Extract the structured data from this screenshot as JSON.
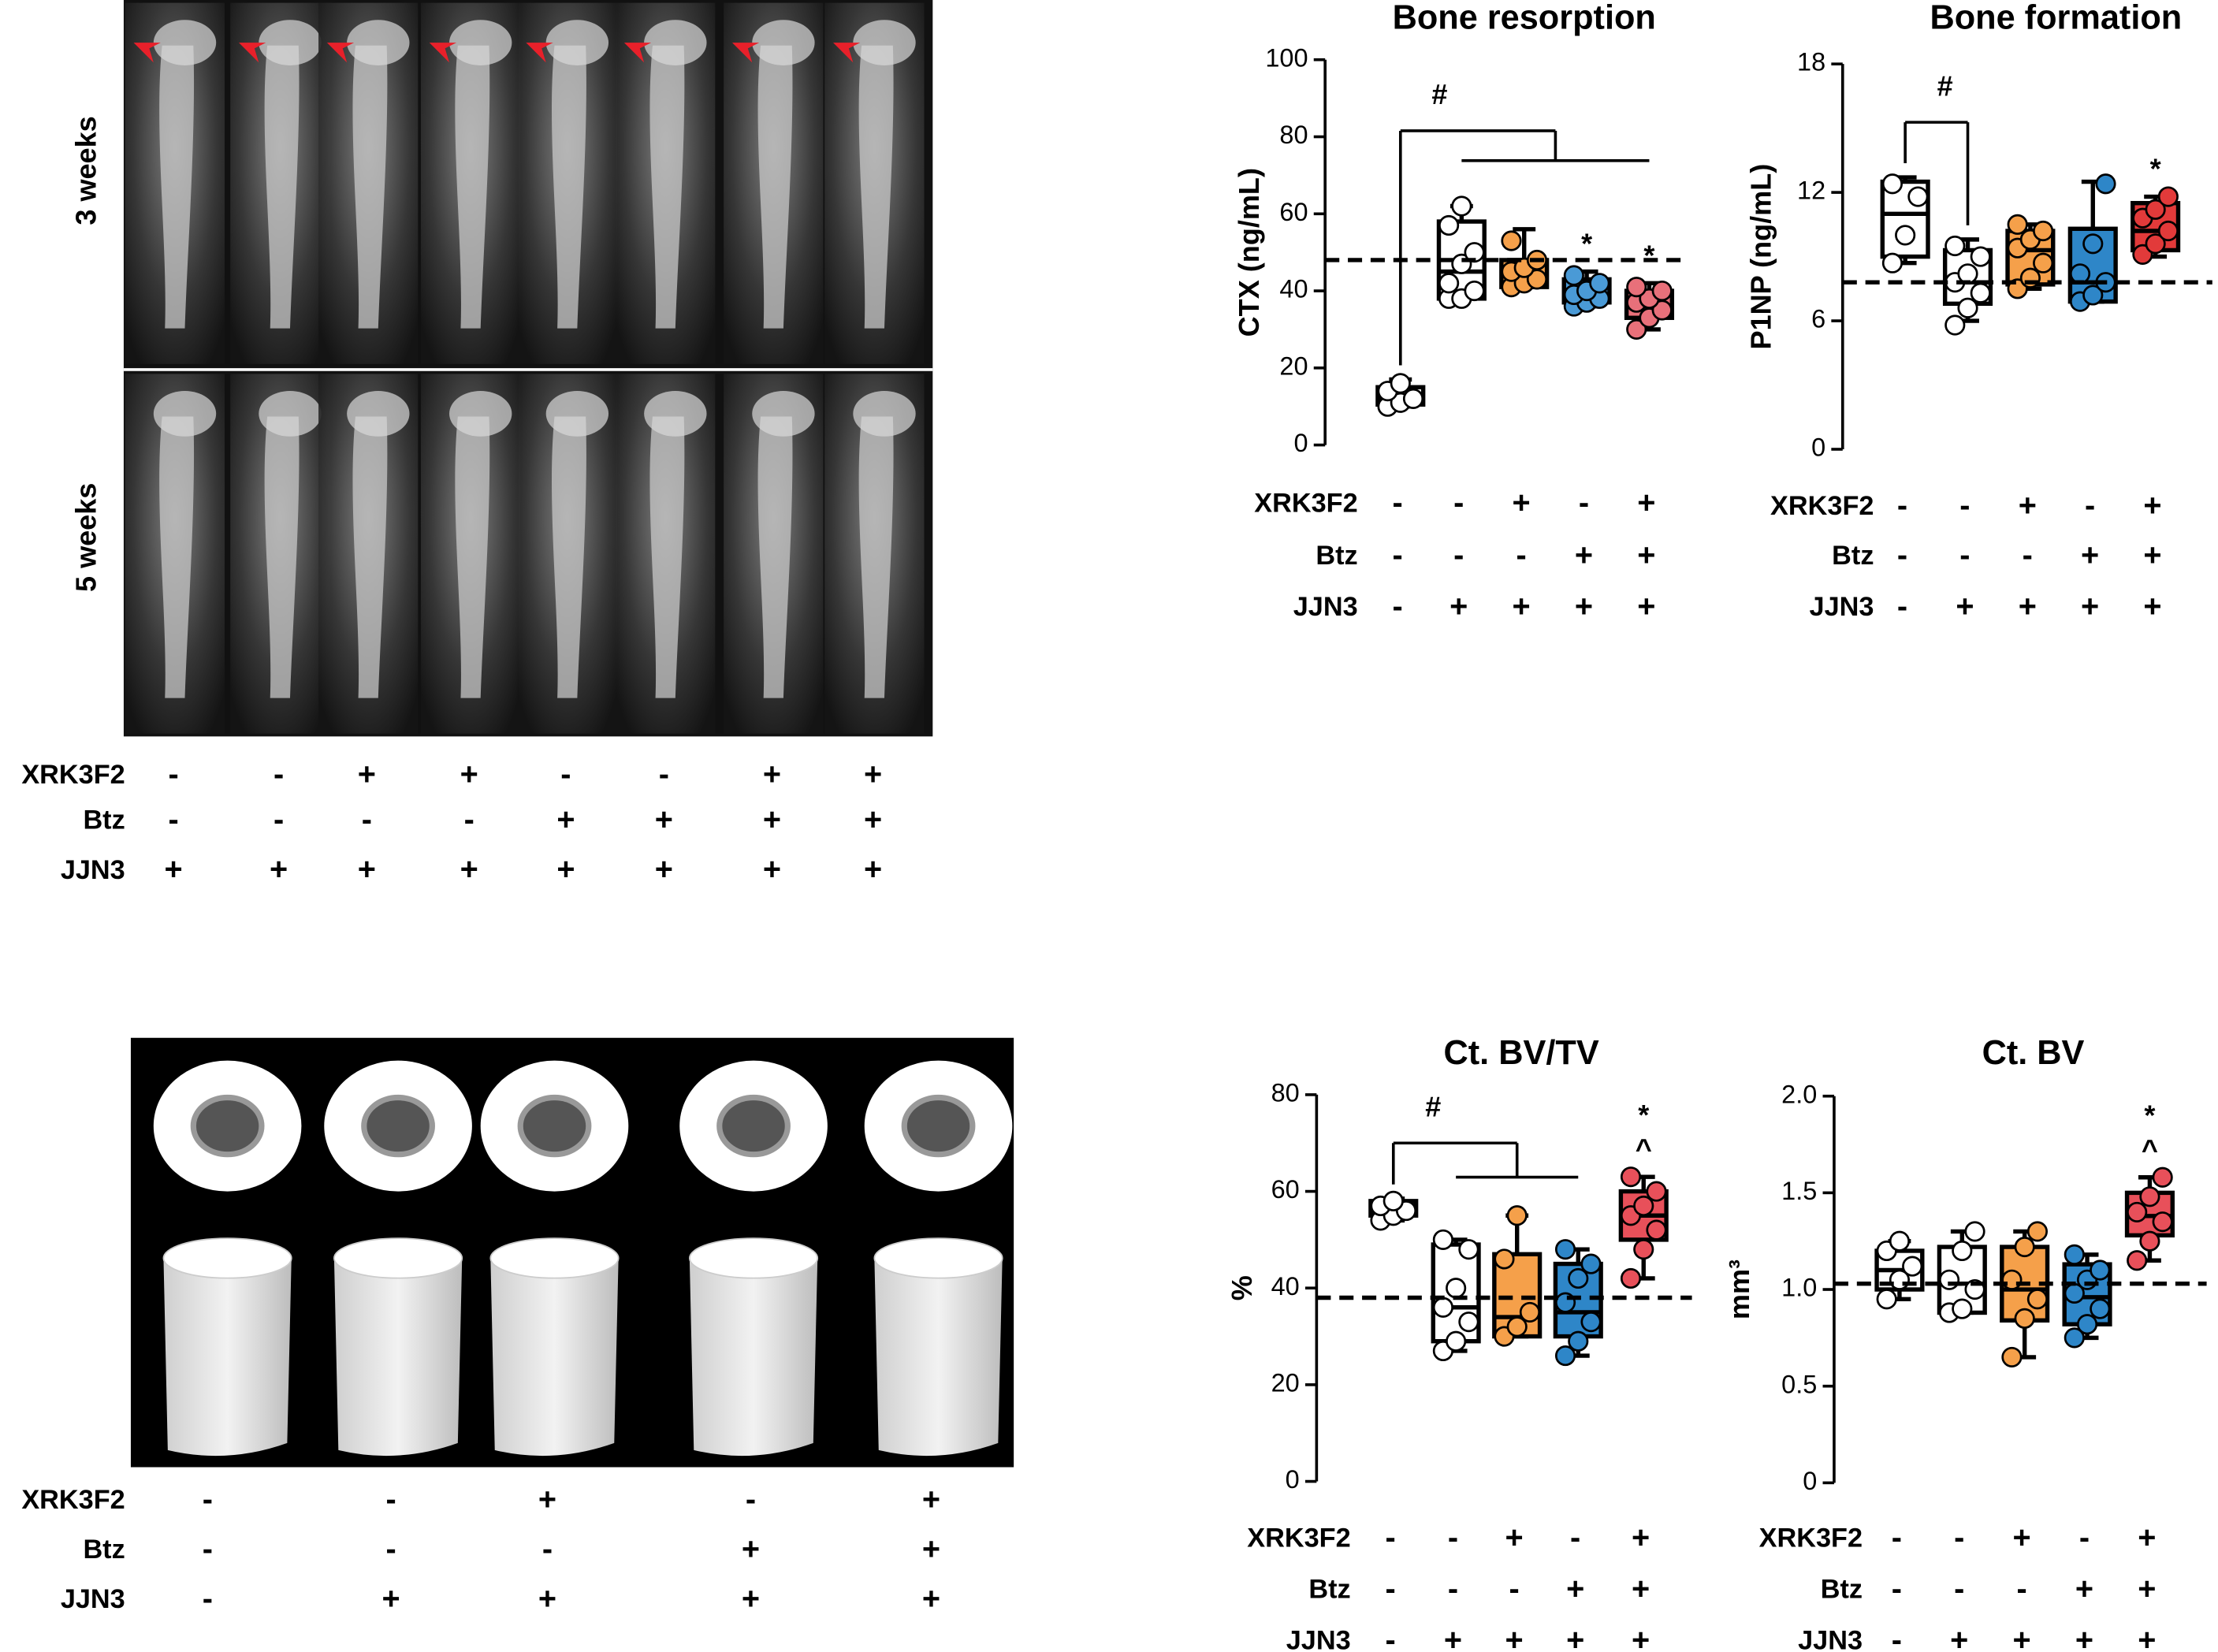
{
  "xray_panel": {
    "row_labels": [
      "3 weeks",
      "5 weeks"
    ],
    "treatments": [
      {
        "name": "XRK3F2",
        "signs": [
          "-",
          "-",
          "+",
          "+",
          "-",
          "-",
          "+",
          "+"
        ]
      },
      {
        "name": "Btz",
        "signs": [
          "-",
          "-",
          "-",
          "-",
          "+",
          "+",
          "+",
          "+"
        ]
      },
      {
        "name": "JJN3",
        "signs": [
          "+",
          "+",
          "+",
          "+",
          "+",
          "+",
          "+",
          "+"
        ]
      }
    ]
  },
  "microct_panel": {
    "treatments": [
      {
        "name": "XRK3F2",
        "signs": [
          "-",
          "-",
          "+",
          "-",
          "+"
        ]
      },
      {
        "name": "Btz",
        "signs": [
          "-",
          "-",
          "-",
          "+",
          "+"
        ]
      },
      {
        "name": "JJN3",
        "signs": [
          "-",
          "+",
          "+",
          "+",
          "+"
        ]
      }
    ]
  },
  "chart_data": [
    {
      "type": "box",
      "title": "Bone resorption",
      "y_label": "CTX (ng/mL)",
      "ylim": [
        0,
        100
      ],
      "yticks": [
        0,
        20,
        40,
        60,
        80,
        100
      ],
      "reference_line": 48,
      "groups": [
        {
          "color": "#ffffff",
          "min": 10,
          "q1": 10.5,
          "median": 12,
          "q3": 15,
          "max": 17,
          "points": [
            10,
            11,
            12,
            14,
            16
          ]
        },
        {
          "color": "#ffffff",
          "min": 38,
          "q1": 38,
          "median": 45,
          "q3": 58,
          "max": 62,
          "points": [
            38,
            38,
            40,
            42,
            47,
            50,
            57,
            62
          ]
        },
        {
          "color": "#f5a04a",
          "min": 41,
          "q1": 41,
          "median": 44,
          "q3": 48,
          "max": 56,
          "points": [
            41,
            42,
            43,
            45,
            46,
            48,
            53
          ]
        },
        {
          "color": "#4a9ad6",
          "min": 36,
          "q1": 37,
          "median": 39,
          "q3": 43,
          "max": 45,
          "points": [
            36,
            37,
            38,
            39,
            40,
            42,
            44
          ]
        },
        {
          "color": "#e8707a",
          "min": 30,
          "q1": 33,
          "median": 36,
          "q3": 40,
          "max": 42,
          "points": [
            30,
            33,
            35,
            37,
            38,
            40,
            41
          ]
        }
      ],
      "annotations": [
        {
          "text": "*",
          "group": 3
        },
        {
          "text": "*",
          "group": 4
        }
      ],
      "bracket": {
        "label": "#",
        "from": 0,
        "to": [
          1,
          4
        ]
      },
      "treatments": [
        {
          "name": "XRK3F2",
          "signs": [
            "-",
            "-",
            "+",
            "-",
            "+"
          ]
        },
        {
          "name": "Btz",
          "signs": [
            "-",
            "-",
            "-",
            "+",
            "+"
          ]
        },
        {
          "name": "JJN3",
          "signs": [
            "-",
            "+",
            "+",
            "+",
            "+"
          ]
        }
      ]
    },
    {
      "type": "box",
      "title": "Bone formation",
      "y_label": "P1NP (ng/mL)",
      "ylim": [
        0,
        18
      ],
      "yticks": [
        0,
        6,
        12,
        18
      ],
      "reference_line": 7.8,
      "groups": [
        {
          "color": "#ffffff",
          "min": 8.7,
          "q1": 9,
          "median": 11,
          "q3": 12.5,
          "max": 12.7,
          "points": [
            8.7,
            10,
            11.8,
            12.4
          ]
        },
        {
          "color": "#ffffff",
          "min": 6,
          "q1": 6.8,
          "median": 7.8,
          "q3": 9.3,
          "max": 9.8,
          "points": [
            5.8,
            6.6,
            7.3,
            7.8,
            8.2,
            9,
            9.5
          ]
        },
        {
          "color": "#f5a04a",
          "min": 7.5,
          "q1": 7.7,
          "median": 9.3,
          "q3": 10.2,
          "max": 10.5,
          "points": [
            7.5,
            8,
            8.7,
            9.4,
            9.8,
            10.2,
            10.5
          ]
        },
        {
          "color": "#2e86c8",
          "min": 6.9,
          "q1": 6.9,
          "median": 7.8,
          "q3": 10.3,
          "max": 12.5,
          "points": [
            6.9,
            7.2,
            7.8,
            8.2,
            9.6,
            12.4
          ]
        },
        {
          "color": "#e23a3a",
          "min": 9,
          "q1": 9.3,
          "median": 10.2,
          "q3": 11.5,
          "max": 11.8,
          "points": [
            9.1,
            9.6,
            10.2,
            10.8,
            11.2,
            11.8
          ]
        }
      ],
      "annotations": [
        {
          "text": "*",
          "group": 4
        }
      ],
      "bracket": {
        "label": "#",
        "from": 0,
        "to": [
          1,
          1
        ]
      },
      "treatments": [
        {
          "name": "XRK3F2",
          "signs": [
            "-",
            "-",
            "+",
            "-",
            "+"
          ]
        },
        {
          "name": "Btz",
          "signs": [
            "-",
            "-",
            "-",
            "+",
            "+"
          ]
        },
        {
          "name": "JJN3",
          "signs": [
            "-",
            "+",
            "+",
            "+",
            "+"
          ]
        }
      ]
    },
    {
      "type": "box",
      "title": "Ct. BV/TV",
      "y_label": "%",
      "ylim": [
        0,
        80
      ],
      "yticks": [
        0,
        20,
        40,
        60,
        80
      ],
      "reference_line": 38,
      "groups": [
        {
          "color": "#111111",
          "min": 54,
          "q1": 55,
          "median": 56.5,
          "q3": 58,
          "max": 58.5,
          "points": [
            54,
            55,
            56,
            57,
            58
          ]
        },
        {
          "color": "#ffffff",
          "min": 27,
          "q1": 29,
          "median": 36,
          "q3": 49,
          "max": 50,
          "points": [
            27,
            29,
            33,
            36,
            40,
            48,
            50
          ]
        },
        {
          "color": "#f5a04a",
          "min": 30,
          "q1": 30,
          "median": 34,
          "q3": 47,
          "max": 55,
          "points": [
            30,
            32,
            35,
            46,
            55
          ]
        },
        {
          "color": "#2e86c8",
          "min": 26,
          "q1": 30,
          "median": 35,
          "q3": 45,
          "max": 48,
          "points": [
            26,
            29,
            33,
            37,
            42,
            45,
            48
          ]
        },
        {
          "color": "#e8505a",
          "min": 42,
          "q1": 50,
          "median": 55,
          "q3": 60,
          "max": 63,
          "points": [
            42,
            48,
            52,
            55,
            57,
            60,
            63
          ]
        }
      ],
      "annotations": [
        {
          "text": "^",
          "group": 4
        },
        {
          "text": "*",
          "group": 4
        }
      ],
      "bracket": {
        "label": "#",
        "from": 0,
        "to": [
          1,
          3
        ]
      },
      "treatments": [
        {
          "name": "XRK3F2",
          "signs": [
            "-",
            "-",
            "+",
            "-",
            "+"
          ]
        },
        {
          "name": "Btz",
          "signs": [
            "-",
            "-",
            "-",
            "+",
            "+"
          ]
        },
        {
          "name": "JJN3",
          "signs": [
            "-",
            "+",
            "+",
            "+",
            "+"
          ]
        }
      ]
    },
    {
      "type": "box",
      "title": "Ct. BV",
      "y_label": "mm³",
      "ylim": [
        0,
        2
      ],
      "yticks": [
        0,
        0.5,
        {
          "value": 1,
          "label": "1.0"
        },
        1.5,
        {
          "value": 2,
          "label": "2.0"
        }
      ],
      "reference_line": 1.03,
      "groups": [
        {
          "color": "#ffffff",
          "min": 0.95,
          "q1": 1,
          "median": 1.1,
          "q3": 1.2,
          "max": 1.25,
          "points": [
            0.95,
            1.05,
            1.12,
            1.2,
            1.25
          ]
        },
        {
          "color": "#ffffff",
          "min": 0.88,
          "q1": 0.88,
          "median": 1.03,
          "q3": 1.22,
          "max": 1.3,
          "points": [
            0.88,
            0.9,
            1,
            1.05,
            1.2,
            1.3
          ]
        },
        {
          "color": "#f5a04a",
          "min": 0.65,
          "q1": 0.84,
          "median": 1,
          "q3": 1.22,
          "max": 1.3,
          "points": [
            0.65,
            0.85,
            0.95,
            1.05,
            1.22,
            1.3
          ]
        },
        {
          "color": "#2e86c8",
          "min": 0.75,
          "q1": 0.82,
          "median": 0.96,
          "q3": 1.13,
          "max": 1.18,
          "points": [
            0.75,
            0.82,
            0.9,
            0.98,
            1.05,
            1.1,
            1.18
          ]
        },
        {
          "color": "#e8505a",
          "min": 1.15,
          "q1": 1.28,
          "median": 1.38,
          "q3": 1.5,
          "max": 1.58,
          "points": [
            1.15,
            1.25,
            1.35,
            1.4,
            1.48,
            1.58
          ]
        }
      ],
      "annotations": [
        {
          "text": "^",
          "group": 4
        },
        {
          "text": "*",
          "group": 4
        }
      ],
      "treatments": [
        {
          "name": "XRK3F2",
          "signs": [
            "-",
            "-",
            "+",
            "-",
            "+"
          ]
        },
        {
          "name": "Btz",
          "signs": [
            "-",
            "-",
            "-",
            "+",
            "+"
          ]
        },
        {
          "name": "JJN3",
          "signs": [
            "-",
            "+",
            "+",
            "+",
            "+"
          ]
        }
      ]
    }
  ]
}
